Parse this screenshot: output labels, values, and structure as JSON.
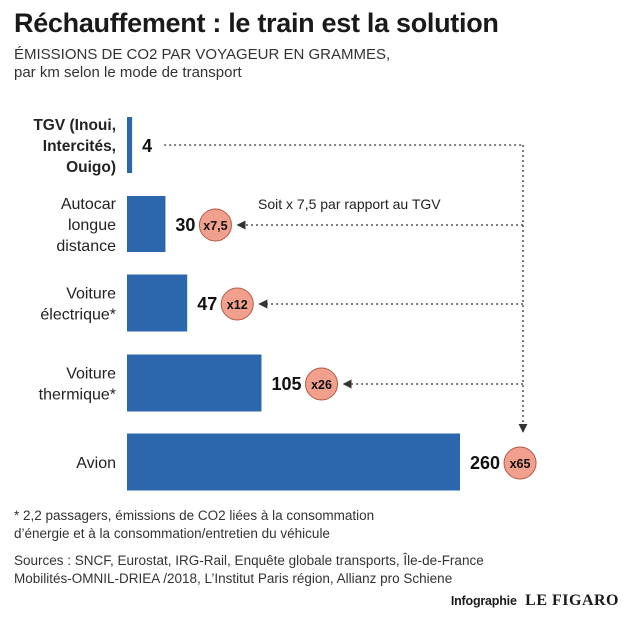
{
  "title": "Réchauffement : le train est la solution",
  "subtitle_line1": "ÉMISSIONS DE CO2 PAR VOYAGEUR EN GRAMMES,",
  "subtitle_line2": "par km selon le mode de transport",
  "annotation": "Soit x 7,5 par rapport au TGV",
  "footnote_line1": "* 2,2 passagers, émissions de CO2 liées à la consommation",
  "footnote_line2": "d’énergie et à la consommation/entretien du véhicule",
  "sources_line1": "Sources : SNCF, Eurostat, IRG-Rail, Enquête globale transports, Île-de-France",
  "sources_line2": "Mobilités-OMNIL-DRIEA /2018, L’Institut Paris région, Allianz pro Schiene",
  "credit_prefix": "Infographie",
  "credit_brand": "LE FIGARO",
  "colors": {
    "bar": "#2c67ad",
    "ratio_circle": "#f0a08c",
    "ratio_stroke": "#b05a48",
    "arrow": "#333333"
  },
  "chart_data": {
    "type": "bar",
    "orientation": "horizontal",
    "title": "Réchauffement : le train est la solution",
    "xlim": [
      0,
      260
    ],
    "grid": false,
    "categories": [
      {
        "label_lines": [
          "TGV (Inoui,",
          "Intercités,",
          "Ouigo)"
        ],
        "value": 4,
        "value_label": "4",
        "ratio": "",
        "highlight": true
      },
      {
        "label_lines": [
          "Autocar",
          "longue",
          "distance"
        ],
        "value": 30,
        "value_label": "30",
        "ratio": "x7,5",
        "highlight": false
      },
      {
        "label_lines": [
          "Voiture",
          "électrique*"
        ],
        "value": 47,
        "value_label": "47",
        "ratio": "x12",
        "highlight": false
      },
      {
        "label_lines": [
          "Voiture",
          "thermique*"
        ],
        "value": 105,
        "value_label": "105",
        "ratio": "x26",
        "highlight": false
      },
      {
        "label_lines": [
          "Avion"
        ],
        "value": 260,
        "value_label": "260",
        "ratio": "x65",
        "highlight": false
      }
    ]
  }
}
